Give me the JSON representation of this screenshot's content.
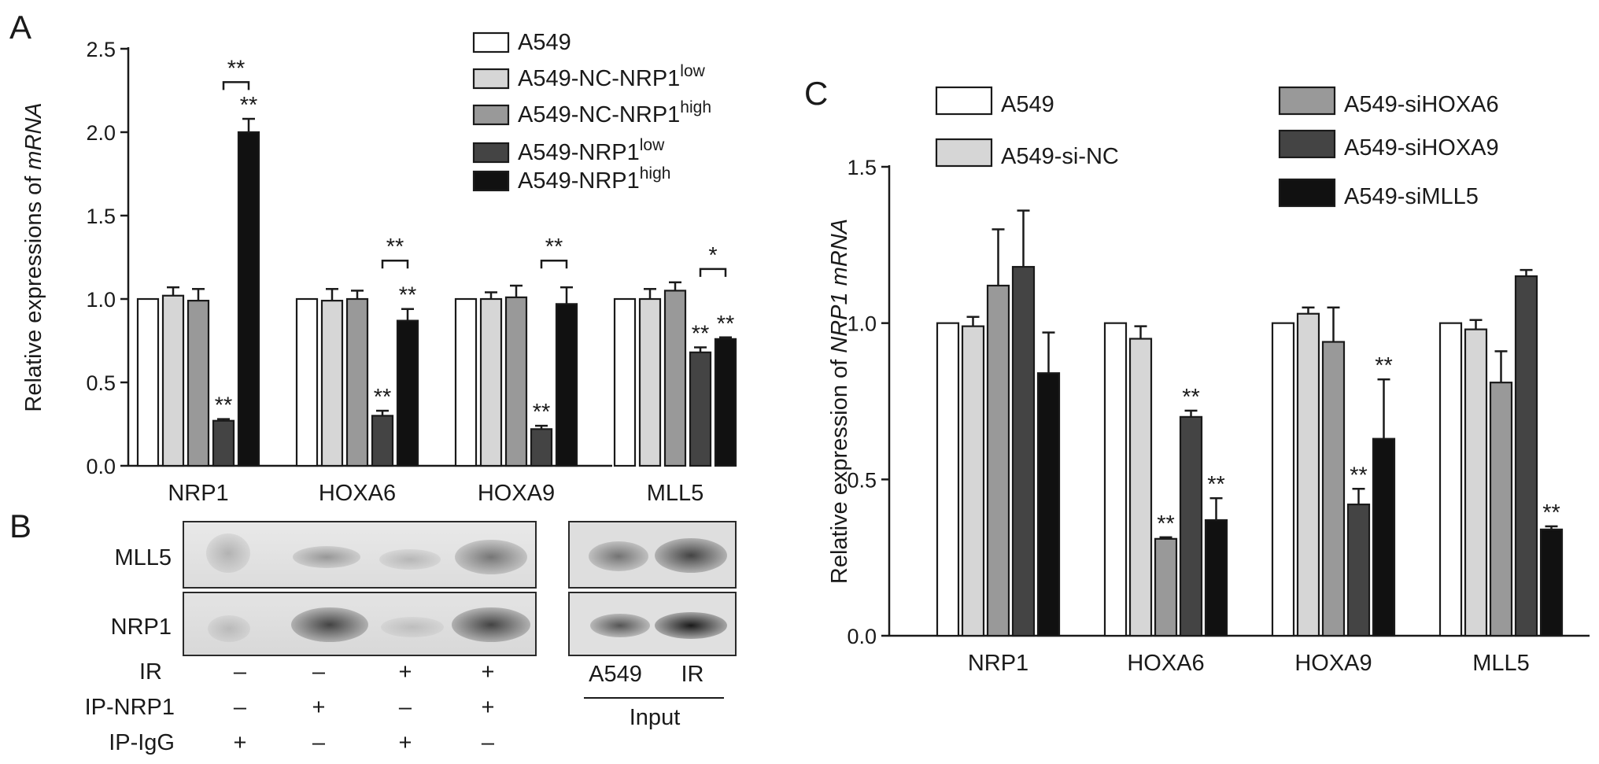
{
  "panels": {
    "a": "A",
    "b": "B",
    "c": "C"
  },
  "chart_data": [
    {
      "type": "bar",
      "panel": "A",
      "ylabel_prefix": "Relative expressions of ",
      "ylabel_italic": "mRNA",
      "ylim": [
        0,
        2.5
      ],
      "yticks": [
        "0.0",
        "0.5",
        "1.0",
        "1.5",
        "2.0",
        "2.5"
      ],
      "categories": [
        "NRP1",
        "HOXA6",
        "HOXA9",
        "MLL5"
      ],
      "legend_position": "top-right",
      "series": [
        {
          "name": "A549",
          "sup": "",
          "color": "#ffffff",
          "values": [
            1.0,
            1.0,
            1.0,
            1.0
          ],
          "errors": [
            0,
            0,
            0,
            0
          ]
        },
        {
          "name": "A549-NC-NRP1",
          "sup": "low",
          "color": "#d6d6d6",
          "values": [
            1.02,
            0.99,
            1.0,
            1.0
          ],
          "errors": [
            0.05,
            0.07,
            0.04,
            0.06
          ]
        },
        {
          "name": "A549-NC-NRP1",
          "sup": "high",
          "color": "#999999",
          "values": [
            0.99,
            1.0,
            1.01,
            1.05
          ],
          "errors": [
            0.07,
            0.05,
            0.07,
            0.05
          ]
        },
        {
          "name": "A549-NRP1",
          "sup": "low",
          "color": "#444444",
          "values": [
            0.27,
            0.3,
            0.22,
            0.68
          ],
          "errors": [
            0.01,
            0.03,
            0.02,
            0.03
          ]
        },
        {
          "name": "A549-NRP1",
          "sup": "high",
          "color": "#111111",
          "values": [
            2.0,
            0.87,
            0.97,
            0.76
          ],
          "errors": [
            0.08,
            0.07,
            0.1,
            0.01
          ]
        }
      ],
      "bar_stars": [
        {
          "category": 0,
          "series": 3,
          "text": "**"
        },
        {
          "category": 0,
          "series": 4,
          "text": "**"
        },
        {
          "category": 1,
          "series": 3,
          "text": "**"
        },
        {
          "category": 1,
          "series": 4,
          "text": "**"
        },
        {
          "category": 2,
          "series": 3,
          "text": "**"
        },
        {
          "category": 3,
          "series": 3,
          "text": "**"
        },
        {
          "category": 3,
          "series": 4,
          "text": "**"
        }
      ],
      "brackets": [
        {
          "category": 0,
          "from": 3,
          "to": 4,
          "y": 2.3,
          "text": "**"
        },
        {
          "category": 1,
          "from": 3,
          "to": 4,
          "y": 1.23,
          "text": "**"
        },
        {
          "category": 2,
          "from": 3,
          "to": 4,
          "y": 1.23,
          "text": "**"
        },
        {
          "category": 3,
          "from": 3,
          "to": 4,
          "y": 1.18,
          "text": "*"
        }
      ]
    },
    {
      "type": "bar",
      "panel": "C",
      "ylabel_prefix": "Relative expression of ",
      "ylabel_italic": "NRP1 mRNA",
      "ylim": [
        0,
        1.5
      ],
      "yticks": [
        "0.0",
        "0.5",
        "1.0",
        "1.5"
      ],
      "categories": [
        "NRP1",
        "HOXA6",
        "HOXA9",
        "MLL5"
      ],
      "legend_position": "top",
      "series": [
        {
          "name": "A549",
          "color": "#ffffff",
          "values": [
            1.0,
            1.0,
            1.0,
            1.0
          ],
          "errors": [
            0,
            0,
            0,
            0
          ]
        },
        {
          "name": "A549-si-NC",
          "color": "#d6d6d6",
          "values": [
            0.99,
            0.95,
            1.03,
            0.98
          ],
          "errors": [
            0.03,
            0.04,
            0.02,
            0.03
          ]
        },
        {
          "name": "A549-siHOXA6",
          "color": "#999999",
          "values": [
            1.12,
            0.31,
            0.94,
            0.81
          ],
          "errors": [
            0.18,
            0.005,
            0.11,
            0.1
          ]
        },
        {
          "name": "A549-siHOXA9",
          "color": "#444444",
          "values": [
            1.18,
            0.7,
            0.42,
            1.15
          ],
          "errors": [
            0.18,
            0.02,
            0.05,
            0.02
          ]
        },
        {
          "name": "A549-siMLL5",
          "color": "#111111",
          "values": [
            0.84,
            0.37,
            0.63,
            0.34
          ],
          "errors": [
            0.13,
            0.07,
            0.19,
            0.01
          ]
        }
      ],
      "bar_stars": [
        {
          "category": 1,
          "series": 2,
          "text": "**"
        },
        {
          "category": 1,
          "series": 3,
          "text": "**"
        },
        {
          "category": 1,
          "series": 4,
          "text": "**"
        },
        {
          "category": 2,
          "series": 3,
          "text": "**"
        },
        {
          "category": 2,
          "series": 4,
          "text": "**"
        },
        {
          "category": 3,
          "series": 4,
          "text": "**"
        }
      ]
    }
  ],
  "blot": {
    "rows": [
      "MLL5",
      "NRP1"
    ],
    "conditions": [
      {
        "label": "IR",
        "values": [
          "–",
          "–",
          "+",
          "+"
        ]
      },
      {
        "label": "IP-NRP1",
        "values": [
          "–",
          "+",
          "–",
          "+"
        ]
      },
      {
        "label": "IP-IgG",
        "values": [
          "+",
          "–",
          "+",
          "–"
        ]
      }
    ],
    "input_lanes": [
      "A549",
      "IR"
    ],
    "input_label": "Input"
  }
}
